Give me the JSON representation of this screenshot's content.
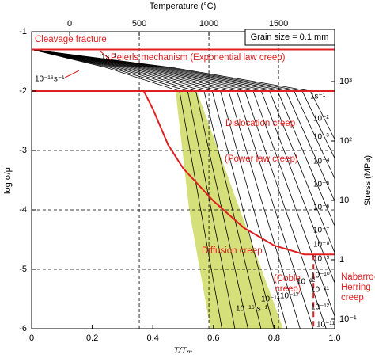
{
  "chart_data": {
    "type": "line",
    "xlabel": "T/Tₘ",
    "ylabel": "log σ/μ",
    "x2label": "Temperature (°C)",
    "y2label": "Stress (MPa)",
    "xlim": [
      0,
      1
    ],
    "xticks": [
      0,
      0.2,
      0.4,
      0.6,
      0.8,
      {
        "value": 1,
        "label": "1.0"
      }
    ],
    "ylim": [
      -6,
      -1
    ],
    "yticks": [
      -6,
      -5,
      -4,
      -3,
      -2,
      -1
    ],
    "x2lim": [
      -273,
      1903
    ],
    "x2ticks": [
      0,
      500,
      1000,
      1500
    ],
    "y2lim": [
      0.0692,
      6920
    ],
    "y2scale": "log",
    "y2ticks": [
      {
        "value": 0.1,
        "label": "10⁻¹"
      },
      1,
      10,
      {
        "value": 100,
        "label": "10²"
      },
      {
        "value": 1000,
        "label": "10³"
      }
    ],
    "grid": true,
    "shaded_region": {
      "color": "#d6e07a",
      "x": [
        0.475,
        0.545,
        0.83,
        0.59,
        0.52
      ],
      "y": [
        -2,
        -2,
        -6,
        -6,
        -4
      ]
    },
    "series": [
      {
        "color": "#000000",
        "x": [
          0,
          0.46,
          0.92,
          1
        ],
        "values": [
          -1.3,
          -1.6,
          -2,
          -2.81
        ]
      },
      {
        "color": "#000000",
        "x": [
          0,
          0.4465,
          0.893,
          1
        ],
        "values": [
          -1.3,
          -1.6,
          -2,
          -3.13
        ]
      },
      {
        "color": "#000000",
        "x": [
          0,
          0.433,
          0.866,
          1
        ],
        "values": [
          -1.3,
          -1.6,
          -2,
          -3.47
        ]
      },
      {
        "color": "#000000",
        "x": [
          0,
          0.4195,
          0.839,
          1
        ],
        "values": [
          -1.3,
          -1.6,
          -2,
          -3.85
        ]
      },
      {
        "color": "#000000",
        "x": [
          0,
          0.406,
          0.812,
          1
        ],
        "values": [
          -1.3,
          -1.6,
          -2,
          -4.27
        ]
      },
      {
        "color": "#000000",
        "x": [
          0,
          0.3925,
          0.785,
          1
        ],
        "values": [
          -1.3,
          -1.6,
          -2,
          -4.72
        ]
      },
      {
        "color": "#000000",
        "x": [
          0,
          0.379,
          0.758,
          1
        ],
        "values": [
          -1.3,
          -1.6,
          -2,
          -5.23
        ]
      },
      {
        "color": "#000000",
        "x": [
          0,
          0.3655,
          0.731,
          1
        ],
        "values": [
          -1.3,
          -1.6,
          -2,
          -5.79
        ]
      },
      {
        "color": "#000000",
        "x": [
          0,
          0.352,
          0.704,
          0.972
        ],
        "values": [
          -1.3,
          -1.6,
          -2,
          -6
        ]
      },
      {
        "color": "#000000",
        "x": [
          0,
          0.3385,
          0.677,
          0.929
        ],
        "values": [
          -1.3,
          -1.6,
          -2,
          -6
        ]
      },
      {
        "color": "#000000",
        "x": [
          0,
          0.325,
          0.65,
          0.886
        ],
        "values": [
          -1.3,
          -1.6,
          -2,
          -6
        ]
      },
      {
        "color": "#000000",
        "x": [
          0,
          0.3115,
          0.623,
          0.843
        ],
        "values": [
          -1.3,
          -1.6,
          -2,
          -6
        ]
      },
      {
        "color": "#000000",
        "x": [
          0,
          0.298,
          0.596,
          0.8
        ],
        "values": [
          -1.3,
          -1.6,
          -2,
          -6
        ]
      },
      {
        "color": "#000000",
        "x": [
          0,
          0.2845,
          0.569,
          0.757
        ],
        "values": [
          -1.3,
          -1.6,
          -2,
          -6
        ]
      },
      {
        "color": "#000000",
        "x": [
          0,
          0.271,
          0.542,
          0.714
        ],
        "values": [
          -1.3,
          -1.6,
          -2,
          -6
        ]
      },
      {
        "color": "#000000",
        "x": [
          0,
          0.2575,
          0.515,
          0.671
        ],
        "values": [
          -1.3,
          -1.6,
          -2,
          -6
        ]
      },
      {
        "color": "#000000",
        "x": [
          0,
          0.244,
          0.488,
          0.628
        ],
        "values": [
          -1.3,
          -1.6,
          -2,
          -6
        ]
      }
    ],
    "boundaries": [
      {
        "color": "#e02020",
        "dashed": false,
        "x": [
          0,
          1
        ],
        "values": [
          -1.3,
          -1.3
        ]
      },
      {
        "color": "#e02020",
        "dashed": false,
        "x": [
          0,
          1
        ],
        "values": [
          -2,
          -2
        ]
      },
      {
        "color": "#e02020",
        "dashed": false,
        "x": [
          0.37,
          0.4,
          0.45,
          0.5,
          0.6,
          0.7,
          0.8,
          0.9,
          0.93,
          1
        ],
        "values": [
          -2,
          -2.3,
          -2.9,
          -3.3,
          -3.85,
          -4.3,
          -4.6,
          -4.75,
          -4.75,
          -4.75
        ]
      },
      {
        "color": "#e02020",
        "dashed": true,
        "x": [
          0.93,
          0.93
        ],
        "values": [
          -4.75,
          -6
        ]
      }
    ],
    "field_labels": [
      "Cleavage fracture",
      "Peierls mechanism (Exponential law creep)",
      "Dislocation creep",
      "(Power law creep)",
      "Diffusion creep",
      "(Coble",
      "creep)",
      "Nabarro-",
      "Herring",
      "creep"
    ],
    "note": "Grain size = 0.1 mm",
    "rate_labels": [
      "1s⁻¹",
      "10⁻¹⁶s⁻¹",
      "1s⁻¹",
      "10⁻²",
      "10⁻³",
      "10⁻⁴",
      "10⁻⁵",
      "10⁻⁶",
      "10⁻⁷",
      "10⁻⁸",
      "10⁻⁹",
      "10⁻¹⁰",
      "10⁻¹¹",
      "10⁻¹²",
      "10⁻¹⁶ s⁻¹",
      "10⁻¹⁴",
      "10⁻¹³",
      "10⁻¹²",
      "10⁻¹¹"
    ]
  }
}
